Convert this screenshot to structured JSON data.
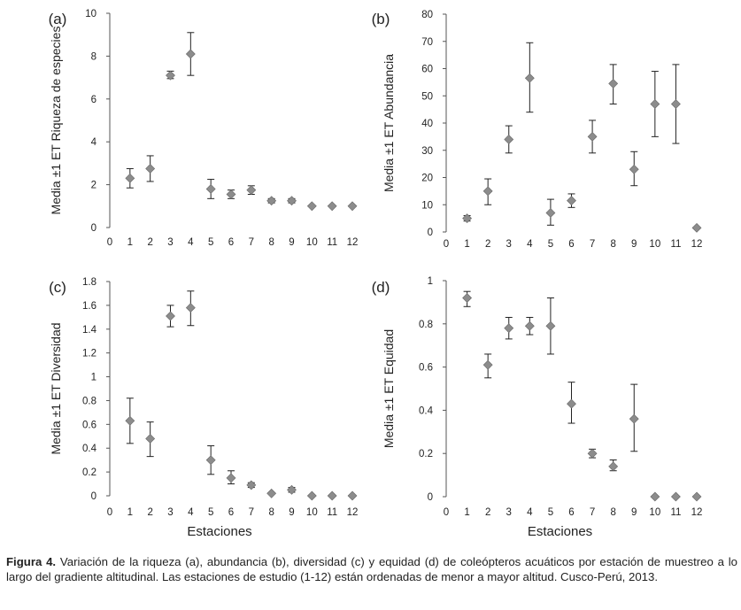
{
  "figure_caption": {
    "label": "Figura 4.",
    "text": "Variación de la riqueza (a), abundancia (b), diversidad (c) y equidad (d) de coleópteros acuáticos por estación de muestreo a lo largo del gradiente altitudinal. Las estaciones de estudio (1-12) están ordenadas de menor a mayor altitud. Cusco-Perú, 2013."
  },
  "chart_data": [
    {
      "panel": "(a)",
      "type": "scatter",
      "ylabel": "Media ±1 ET Riqueza de especies",
      "xlabel": "",
      "xlim": [
        0,
        12
      ],
      "ylim": [
        0,
        10
      ],
      "xticks": [
        0,
        1,
        2,
        3,
        4,
        5,
        6,
        7,
        8,
        9,
        10,
        11,
        12
      ],
      "yticks": [
        0,
        2,
        4,
        6,
        8,
        10
      ],
      "ytick_labels": [
        "0",
        "2",
        "4",
        "6",
        "8",
        "10"
      ],
      "x": [
        1,
        2,
        3,
        4,
        5,
        6,
        7,
        8,
        9,
        10,
        11,
        12
      ],
      "y": [
        2.3,
        2.75,
        7.1,
        8.1,
        1.8,
        1.55,
        1.75,
        1.25,
        1.25,
        1.0,
        1.0,
        1.0
      ],
      "err_low": [
        1.85,
        2.15,
        6.95,
        7.1,
        1.35,
        1.35,
        1.55,
        1.15,
        1.15,
        1.0,
        1.0,
        1.0
      ],
      "err_high": [
        2.75,
        3.35,
        7.3,
        9.1,
        2.25,
        1.75,
        1.95,
        1.35,
        1.35,
        1.0,
        1.0,
        1.0
      ]
    },
    {
      "panel": "(b)",
      "type": "scatter",
      "ylabel": "Media ±1 ET Abundancia",
      "xlabel": "",
      "xlim": [
        0,
        12
      ],
      "ylim": [
        0,
        80
      ],
      "xticks": [
        0,
        1,
        2,
        3,
        4,
        5,
        6,
        7,
        8,
        9,
        10,
        11,
        12
      ],
      "yticks": [
        0,
        10,
        20,
        30,
        40,
        50,
        60,
        70,
        80
      ],
      "ytick_labels": [
        "0",
        "10",
        "20",
        "30",
        "40",
        "50",
        "60",
        "70",
        "80"
      ],
      "x": [
        1,
        2,
        3,
        4,
        5,
        6,
        7,
        8,
        9,
        10,
        11,
        12
      ],
      "y": [
        5,
        15,
        34,
        56.5,
        7,
        11.5,
        35,
        54.5,
        23,
        47,
        47,
        1.5
      ],
      "err_low": [
        4,
        10,
        29,
        44,
        2.5,
        9,
        29,
        47,
        17,
        35,
        32.5,
        1.5
      ],
      "err_high": [
        6,
        19.5,
        39,
        69.5,
        12,
        14,
        41,
        61.5,
        29.5,
        59,
        61.5,
        1.5
      ]
    },
    {
      "panel": "(c)",
      "type": "scatter",
      "ylabel": "Media ±1 ET Diversidad",
      "xlabel": "Estaciones",
      "xlim": [
        0,
        12
      ],
      "ylim": [
        0,
        1.8
      ],
      "xticks": [
        0,
        1,
        2,
        3,
        4,
        5,
        6,
        7,
        8,
        9,
        10,
        11,
        12
      ],
      "yticks": [
        0,
        0.2,
        0.4,
        0.6,
        0.8,
        1,
        1.2,
        1.4,
        1.6,
        1.8
      ],
      "ytick_labels": [
        "0",
        "0.2",
        "0.4",
        "0.6",
        "0.8",
        "1",
        "1.2",
        "1.4",
        "1.6",
        "1.8"
      ],
      "x": [
        1,
        2,
        3,
        4,
        5,
        6,
        7,
        8,
        9,
        10,
        11,
        12
      ],
      "y": [
        0.63,
        0.48,
        1.51,
        1.58,
        0.3,
        0.15,
        0.09,
        0.02,
        0.05,
        0.0,
        0.0,
        0.0
      ],
      "err_low": [
        0.44,
        0.33,
        1.42,
        1.43,
        0.18,
        0.1,
        0.07,
        0.02,
        0.03,
        0.0,
        0.0,
        0.0
      ],
      "err_high": [
        0.82,
        0.62,
        1.6,
        1.72,
        0.42,
        0.21,
        0.11,
        0.02,
        0.07,
        0.0,
        0.0,
        0.0
      ]
    },
    {
      "panel": "(d)",
      "type": "scatter",
      "ylabel": "Media ±1 ET Equidad",
      "xlabel": "Estaciones",
      "xlim": [
        0,
        12
      ],
      "ylim": [
        0,
        1
      ],
      "xticks": [
        0,
        1,
        2,
        3,
        4,
        5,
        6,
        7,
        8,
        9,
        10,
        11,
        12
      ],
      "yticks": [
        0,
        0.2,
        0.4,
        0.6,
        0.8,
        1
      ],
      "ytick_labels": [
        "0",
        "0.2",
        "0.4",
        "0.6",
        "0.8",
        "1"
      ],
      "x": [
        1,
        2,
        3,
        4,
        5,
        6,
        7,
        8,
        9,
        10,
        11,
        12
      ],
      "y": [
        0.92,
        0.61,
        0.78,
        0.79,
        0.79,
        0.43,
        0.2,
        0.14,
        0.36,
        0.0,
        0.0,
        0.0
      ],
      "err_low": [
        0.88,
        0.55,
        0.73,
        0.75,
        0.66,
        0.34,
        0.18,
        0.12,
        0.21,
        0.0,
        0.0,
        0.0
      ],
      "err_high": [
        0.95,
        0.66,
        0.83,
        0.83,
        0.92,
        0.53,
        0.22,
        0.17,
        0.52,
        0.0,
        0.0,
        0.0
      ]
    }
  ]
}
